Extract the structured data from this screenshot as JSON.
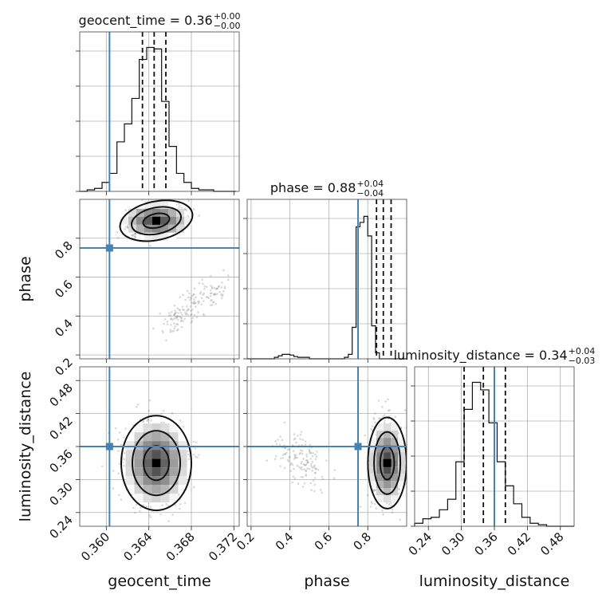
{
  "chart_data": {
    "type": "corner",
    "parameters": [
      {
        "name": "geocent_time",
        "label": "geocent_time",
        "range": [
          0.3575,
          0.3725
        ],
        "ticks": [
          "0.360",
          "0.364",
          "0.368",
          "0.372"
        ],
        "tick_values": [
          0.36,
          0.364,
          0.368,
          0.372
        ]
      },
      {
        "name": "phase",
        "label": "phase",
        "range": [
          0.18,
          1.0
        ],
        "ticks": [
          "0.2",
          "0.4",
          "0.6",
          "0.8"
        ],
        "tick_values": [
          0.2,
          0.4,
          0.6,
          0.8
        ]
      },
      {
        "name": "luminosity_distance",
        "label": "luminosity_distance",
        "range": [
          0.215,
          0.505
        ],
        "ticks": [
          "0.24",
          "0.30",
          "0.36",
          "0.42",
          "0.48"
        ],
        "tick_values": [
          0.24,
          0.3,
          0.36,
          0.42,
          0.48
        ]
      }
    ],
    "titles": [
      {
        "text": "geocent_time = 0.36",
        "sup": "+0.00",
        "sub": "−0.00"
      },
      {
        "text": "phase = 0.88",
        "sup": "+0.04",
        "sub": "−0.04"
      },
      {
        "text": "luminosity_distance = 0.34",
        "sup": "+0.04",
        "sub": "−0.03"
      }
    ],
    "truths": [
      0.3603,
      0.75,
      0.36
    ],
    "quantiles": [
      [
        0.3634,
        0.3645,
        0.3656
      ],
      [
        0.845,
        0.88,
        0.92
      ],
      [
        0.305,
        0.34,
        0.38
      ]
    ],
    "histograms": [
      {
        "bin_start": 0.3575,
        "bin_width": 0.0007,
        "counts": [
          0,
          0.01,
          0.02,
          0.06,
          0.12,
          0.33,
          0.45,
          0.62,
          0.88,
          0.96,
          0.95,
          0.6,
          0.3,
          0.12,
          0.06,
          0.02,
          0.01,
          0.01,
          0,
          0,
          0
        ],
        "ymax": 1.0
      },
      {
        "bin_start": 0.18,
        "bin_width": 0.02,
        "counts": [
          0,
          0,
          0,
          0,
          0,
          0,
          0,
          0.01,
          0.02,
          0.03,
          0.03,
          0.025,
          0.015,
          0.01,
          0.01,
          0.01,
          0,
          0,
          0,
          0,
          0,
          0,
          0,
          0,
          0,
          0.01,
          0.03,
          0.21,
          0.88,
          0.91,
          0.95,
          0.82,
          0.22,
          0.04,
          0,
          0,
          0,
          0,
          0,
          0,
          0
        ],
        "ymax": 1.0
      },
      {
        "bin_start": 0.215,
        "bin_width": 0.015,
        "counts": [
          0.02,
          0.05,
          0.06,
          0.11,
          0.18,
          0.43,
          0.78,
          0.96,
          0.91,
          0.69,
          0.43,
          0.27,
          0.15,
          0.06,
          0.02,
          0.01,
          0.0,
          0,
          0,
          0
        ],
        "ymax": 1.0
      }
    ],
    "modes": [
      {
        "x": 0.3647,
        "y": 0.89,
        "label": "geocent_time vs phase"
      },
      {
        "x": 0.3647,
        "y": 0.33,
        "label": "geocent_time vs luminosity_distance"
      },
      {
        "x": 0.9,
        "y": 0.33,
        "label": "phase vs luminosity_distance"
      }
    ]
  }
}
